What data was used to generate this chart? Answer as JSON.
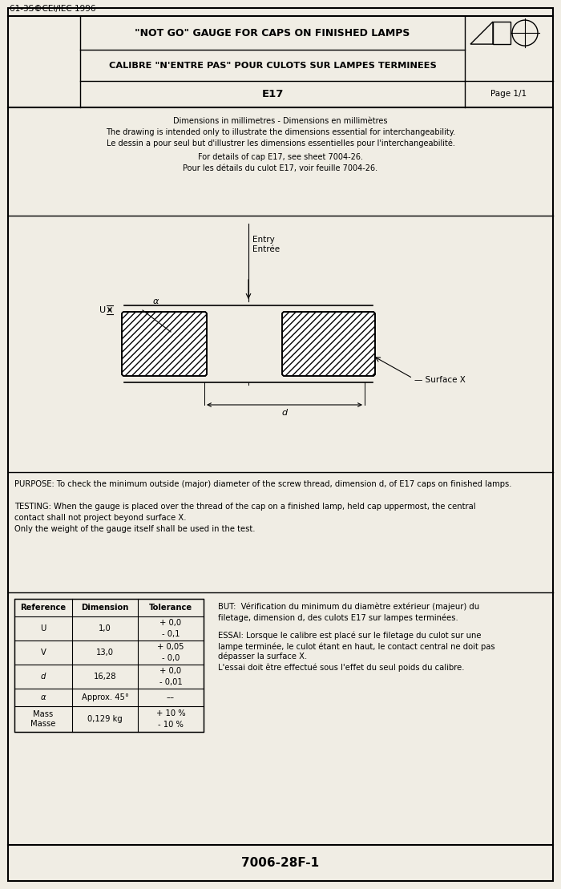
{
  "title_line1": "\"NOT GO\" GAUGE FOR CAPS ON FINISHED LAMPS",
  "title_line2": "CALIBRE \"N'ENTRE PAS\" POUR CULOTS SUR LAMPES TERMINEES",
  "title_line3": "E17",
  "page": "Page 1/1",
  "standard": "61-3S©CEI/IEC 1996",
  "footer": "7006-28F-1",
  "dim_note1": "Dimensions in millimetres - Dimensions en millimètres",
  "dim_note2": "The drawing is intended only to illustrate the dimensions essential for interchangeability.",
  "dim_note2fr": "Le dessin a pour seul but d'illustrer les dimensions essentielles pour l'interchangeabilité.",
  "dim_note3": "For details of cap E17, see sheet 7004-26.",
  "dim_note3fr": "Pour les détails du culot E17, voir feuille 7004-26.",
  "bg_color": "#f0ede4",
  "table_headers": [
    "Reference",
    "Dimension",
    "Tolerance"
  ],
  "row_data": [
    [
      "U",
      "1,0",
      "+ 0,0",
      "- 0,1"
    ],
    [
      "V",
      "13,0",
      "+ 0,05",
      "- 0,0"
    ],
    [
      "d",
      "16,28",
      "+ 0,0",
      "- 0,01"
    ],
    [
      "α",
      "Approx. 45°",
      "––",
      ""
    ],
    [
      "Mass\nMasse",
      "0,129 kg",
      "+ 10 %",
      "- 10 %"
    ]
  ]
}
